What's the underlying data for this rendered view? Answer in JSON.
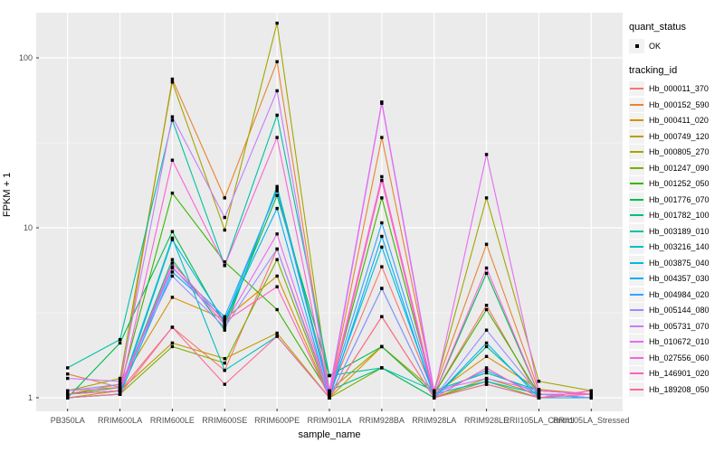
{
  "chart_data": {
    "type": "line",
    "xlabel": "sample_name",
    "ylabel": "FPKM + 1",
    "y_scale": "log10",
    "ylim_log": [
      1,
      200
    ],
    "grid": "on",
    "panel_bg": "#EBEBEB",
    "grid_color": "#FFFFFF",
    "point_color": "#000000",
    "yticks": [
      {
        "label": "1",
        "value": 1
      },
      {
        "label": "10",
        "value": 10
      },
      {
        "label": "100",
        "value": 100
      }
    ],
    "categories": [
      "PB350LA",
      "RRIM600LA",
      "RRIM600LE",
      "RRIM600SE",
      "RRIM600PE",
      "RRIM901LA",
      "RRIM928BA",
      "RRIM928LA",
      "RRIM928LE",
      "RRII105LA_Control",
      "RRII105LA_Stressed"
    ],
    "series": [
      {
        "name": "Hb_000011_370",
        "color": "#F8766D",
        "values": [
          1.05,
          1.1,
          2.6,
          1.45,
          7.5,
          1.05,
          5.9,
          1.05,
          3.5,
          1.0,
          1.1
        ]
      },
      {
        "name": "Hb_000152_590",
        "color": "#EA8331",
        "values": [
          1.38,
          1.15,
          75.0,
          15.0,
          95.0,
          1.05,
          34.0,
          1.1,
          8.0,
          1.1,
          1.05
        ]
      },
      {
        "name": "Hb_000411_020",
        "color": "#D89000",
        "values": [
          1.05,
          1.2,
          3.9,
          2.9,
          5.2,
          1.0,
          2.0,
          1.05,
          1.75,
          1.12,
          1.05
        ]
      },
      {
        "name": "Hb_000749_120",
        "color": "#C09B00",
        "values": [
          1.0,
          1.1,
          2.1,
          1.7,
          2.4,
          1.0,
          3.0,
          1.0,
          1.3,
          1.05,
          1.0
        ]
      },
      {
        "name": "Hb_000805_270",
        "color": "#A3A500",
        "values": [
          1.1,
          1.3,
          72.0,
          9.7,
          160.0,
          1.1,
          2.0,
          1.1,
          15.0,
          1.25,
          1.1
        ]
      },
      {
        "name": "Hb_001247_090",
        "color": "#7CAE00",
        "values": [
          1.0,
          1.05,
          2.0,
          1.6,
          6.5,
          1.0,
          1.5,
          1.0,
          1.25,
          1.0,
          1.0
        ]
      },
      {
        "name": "Hb_001252_050",
        "color": "#39B600",
        "values": [
          1.05,
          1.15,
          16.0,
          6.3,
          3.3,
          1.05,
          15.0,
          1.05,
          3.3,
          1.05,
          1.05
        ]
      },
      {
        "name": "Hb_001776_070",
        "color": "#00BB4E",
        "values": [
          1.0,
          2.1,
          9.5,
          2.7,
          15.5,
          1.35,
          2.0,
          1.05,
          5.4,
          1.05,
          1.0
        ]
      },
      {
        "name": "Hb_001782_100",
        "color": "#00BF7D",
        "values": [
          1.05,
          1.1,
          6.5,
          2.5,
          17.5,
          1.1,
          1.5,
          1.0,
          2.0,
          1.05,
          1.0
        ]
      },
      {
        "name": "Hb_003189_010",
        "color": "#00C1A3",
        "values": [
          1.5,
          2.2,
          43.0,
          6.0,
          46.0,
          1.35,
          1.5,
          1.1,
          1.4,
          1.1,
          1.05
        ]
      },
      {
        "name": "Hb_003216_140",
        "color": "#00BFC4",
        "values": [
          1.05,
          1.1,
          8.7,
          1.45,
          2.3,
          1.0,
          4.4,
          1.0,
          1.2,
          1.0,
          1.0
        ]
      },
      {
        "name": "Hb_003875_040",
        "color": "#00BAE0",
        "values": [
          1.0,
          1.05,
          8.5,
          2.8,
          17.0,
          1.05,
          7.7,
          1.05,
          1.25,
          1.05,
          1.0
        ]
      },
      {
        "name": "Hb_004357_030",
        "color": "#00B0F6",
        "values": [
          1.0,
          1.05,
          5.5,
          2.9,
          13.0,
          1.0,
          8.9,
          1.0,
          2.1,
          1.0,
          1.0
        ]
      },
      {
        "name": "Hb_004984_020",
        "color": "#35A2FF",
        "values": [
          1.05,
          1.1,
          5.8,
          3.0,
          16.5,
          1.05,
          10.7,
          1.05,
          1.45,
          1.05,
          1.05
        ]
      },
      {
        "name": "Hb_005144_080",
        "color": "#9590FF",
        "values": [
          1.1,
          1.2,
          5.2,
          2.6,
          7.5,
          1.0,
          4.4,
          1.0,
          2.5,
          1.05,
          1.0
        ]
      },
      {
        "name": "Hb_005731_070",
        "color": "#C77CFF",
        "values": [
          1.3,
          1.25,
          45.0,
          11.5,
          64.0,
          1.1,
          55.0,
          1.1,
          1.3,
          1.1,
          1.05
        ]
      },
      {
        "name": "Hb_010672_010",
        "color": "#E76BF3",
        "values": [
          1.1,
          1.15,
          5.9,
          2.7,
          9.2,
          1.05,
          54.0,
          1.05,
          27.0,
          1.1,
          1.05
        ]
      },
      {
        "name": "Hb_027556_060",
        "color": "#FA62DB",
        "values": [
          1.05,
          1.1,
          25.0,
          6.0,
          34.0,
          1.05,
          20.0,
          1.05,
          5.8,
          1.05,
          1.05
        ]
      },
      {
        "name": "Hb_146901_020",
        "color": "#FF62BC",
        "values": [
          1.05,
          1.1,
          6.2,
          2.8,
          4.5,
          1.0,
          19.0,
          1.0,
          1.5,
          1.0,
          1.1
        ]
      },
      {
        "name": "Hb_189208_050",
        "color": "#FF6A98",
        "values": [
          1.0,
          1.05,
          2.6,
          1.2,
          2.3,
          1.0,
          3.0,
          1.0,
          1.2,
          1.0,
          1.05
        ]
      }
    ],
    "legend": {
      "quant_title": "quant_status",
      "quant_items": [
        {
          "label": "OK",
          "marker": "point"
        }
      ],
      "tracking_title": "tracking_id"
    }
  }
}
